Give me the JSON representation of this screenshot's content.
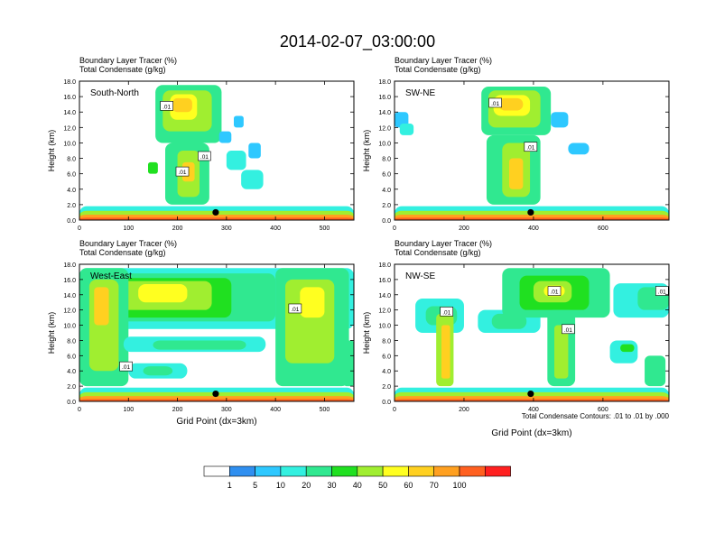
{
  "title": "2014-02-07_03:00:00",
  "colors": {
    "scale": [
      "#ffffff",
      "#2f8ff0",
      "#2ec8ff",
      "#33f0e0",
      "#30e890",
      "#20e020",
      "#a0ee30",
      "#ffff20",
      "#ffd020",
      "#ffa020",
      "#ff6020",
      "#ff2020"
    ],
    "contour": "#000000",
    "frame": "#000000"
  },
  "colorbar_labels": [
    "1",
    "5",
    "10",
    "20",
    "30",
    "40",
    "50",
    "60",
    "70",
    "100"
  ],
  "footnote": "Total Condensate Contours: .01 to .01 by .000",
  "chart_data": [
    {
      "type": "heatmap",
      "title": "South-North",
      "header_line1": "Boundary Layer Tracer   (%)",
      "header_line2": "Total Condensate   (g/kg)",
      "ylabel": "Height (km)",
      "xlabel": "",
      "xlim": [
        0,
        560
      ],
      "ylim": [
        0,
        18
      ],
      "xticks": [
        "0",
        "100",
        "200",
        "300",
        "400",
        "500"
      ],
      "xtick_values": [
        0,
        100,
        200,
        300,
        400,
        500
      ],
      "yticks": [
        "0.0",
        "2.0",
        "4.0",
        "6.0",
        "8.0",
        "10.0",
        "12.0",
        "14.0",
        "16.0",
        "18.0"
      ],
      "contour_labels": [
        {
          "text": ".01",
          "x": 178,
          "y": 14.8
        },
        {
          "text": ".01",
          "x": 210,
          "y": 6.3
        },
        {
          "text": ".01",
          "x": 255,
          "y": 8.3
        }
      ],
      "marker": {
        "x": 278,
        "y": 1.0
      },
      "cells": [
        {
          "x0": 0,
          "x1": 560,
          "y0": 0,
          "y1": 1.8,
          "v": 10
        },
        {
          "x0": 0,
          "x1": 560,
          "y0": 0,
          "y1": 1.2,
          "v": 40
        },
        {
          "x0": 0,
          "x1": 560,
          "y0": 0,
          "y1": 0.7,
          "v": 70
        },
        {
          "x0": 0,
          "x1": 560,
          "y0": 0,
          "y1": 0.3,
          "v": 100
        },
        {
          "x0": 155,
          "x1": 290,
          "y0": 10,
          "y1": 17.5,
          "v": 20
        },
        {
          "x0": 170,
          "x1": 270,
          "y0": 11.5,
          "y1": 16.8,
          "v": 40
        },
        {
          "x0": 185,
          "x1": 240,
          "y0": 13,
          "y1": 16.3,
          "v": 50
        },
        {
          "x0": 190,
          "x1": 230,
          "y0": 14,
          "y1": 15.8,
          "v": 60
        },
        {
          "x0": 175,
          "x1": 265,
          "y0": 2,
          "y1": 10,
          "v": 20
        },
        {
          "x0": 200,
          "x1": 245,
          "y0": 3,
          "y1": 9,
          "v": 40
        },
        {
          "x0": 210,
          "x1": 235,
          "y0": 5,
          "y1": 7.5,
          "v": 60
        },
        {
          "x0": 140,
          "x1": 160,
          "y0": 6,
          "y1": 7.5,
          "v": 30
        },
        {
          "x0": 285,
          "x1": 310,
          "y0": 10,
          "y1": 11.5,
          "v": 5
        },
        {
          "x0": 300,
          "x1": 340,
          "y0": 6.5,
          "y1": 9,
          "v": 10
        },
        {
          "x0": 330,
          "x1": 375,
          "y0": 4,
          "y1": 6.5,
          "v": 10
        },
        {
          "x0": 345,
          "x1": 370,
          "y0": 8,
          "y1": 10,
          "v": 5
        },
        {
          "x0": 315,
          "x1": 335,
          "y0": 12,
          "y1": 13.5,
          "v": 5
        }
      ]
    },
    {
      "type": "heatmap",
      "title": "SW-NE",
      "header_line1": "Boundary Layer Tracer   (%)",
      "header_line2": "Total Condensate   (g/kg)",
      "ylabel": "Height (km)",
      "xlabel": "",
      "xlim": [
        0,
        790
      ],
      "ylim": [
        0,
        18
      ],
      "xticks": [
        "0",
        "200",
        "400",
        "600"
      ],
      "xtick_values": [
        0,
        200,
        400,
        600
      ],
      "yticks": [
        "0.0",
        "2.0",
        "4.0",
        "6.0",
        "8.0",
        "10.0",
        "12.0",
        "14.0",
        "16.0",
        "18.0"
      ],
      "contour_labels": [
        {
          "text": ".01",
          "x": 290,
          "y": 15.2
        },
        {
          "text": ".01",
          "x": 392,
          "y": 9.5
        }
      ],
      "marker": {
        "x": 392,
        "y": 1.0
      },
      "cells": [
        {
          "x0": 0,
          "x1": 790,
          "y0": 0,
          "y1": 1.8,
          "v": 10
        },
        {
          "x0": 0,
          "x1": 790,
          "y0": 0,
          "y1": 1.2,
          "v": 40
        },
        {
          "x0": 0,
          "x1": 790,
          "y0": 0,
          "y1": 0.7,
          "v": 70
        },
        {
          "x0": 0,
          "x1": 790,
          "y0": 0,
          "y1": 0.3,
          "v": 100
        },
        {
          "x0": 250,
          "x1": 450,
          "y0": 11,
          "y1": 17.3,
          "v": 20
        },
        {
          "x0": 270,
          "x1": 420,
          "y0": 12,
          "y1": 16.8,
          "v": 40
        },
        {
          "x0": 285,
          "x1": 390,
          "y0": 13.5,
          "y1": 16.2,
          "v": 50
        },
        {
          "x0": 300,
          "x1": 370,
          "y0": 14.2,
          "y1": 15.8,
          "v": 60
        },
        {
          "x0": 265,
          "x1": 420,
          "y0": 2,
          "y1": 11,
          "v": 20
        },
        {
          "x0": 310,
          "x1": 390,
          "y0": 3,
          "y1": 10,
          "v": 40
        },
        {
          "x0": 330,
          "x1": 370,
          "y0": 4,
          "y1": 8,
          "v": 60
        },
        {
          "x0": 0,
          "x1": 40,
          "y0": 12,
          "y1": 14,
          "v": 5
        },
        {
          "x0": 15,
          "x1": 55,
          "y0": 11,
          "y1": 12.5,
          "v": 10
        },
        {
          "x0": 450,
          "x1": 500,
          "y0": 12,
          "y1": 14,
          "v": 5
        },
        {
          "x0": 500,
          "x1": 560,
          "y0": 8.5,
          "y1": 10,
          "v": 5
        }
      ]
    },
    {
      "type": "heatmap",
      "title": "West-East",
      "header_line1": "Boundary Layer Tracer   (%)",
      "header_line2": "Total Condensate   (g/kg)",
      "ylabel": "Height (km)",
      "xlabel": "Grid Point (dx=3km)",
      "xlim": [
        0,
        560
      ],
      "ylim": [
        0,
        18
      ],
      "xticks": [
        "0",
        "100",
        "200",
        "300",
        "400",
        "500"
      ],
      "xtick_values": [
        0,
        100,
        200,
        300,
        400,
        500
      ],
      "yticks": [
        "0.0",
        "2.0",
        "4.0",
        "6.0",
        "8.0",
        "10.0",
        "12.0",
        "14.0",
        "16.0",
        "18.0"
      ],
      "contour_labels": [
        {
          "text": ".01",
          "x": 95,
          "y": 4.6
        },
        {
          "text": ".01",
          "x": 440,
          "y": 12.2
        }
      ],
      "marker": {
        "x": 278,
        "y": 1.0
      },
      "cells": [
        {
          "x0": 0,
          "x1": 560,
          "y0": 0,
          "y1": 1.8,
          "v": 10
        },
        {
          "x0": 0,
          "x1": 560,
          "y0": 0,
          "y1": 1.2,
          "v": 40
        },
        {
          "x0": 0,
          "x1": 560,
          "y0": 0,
          "y1": 0.7,
          "v": 70
        },
        {
          "x0": 0,
          "x1": 560,
          "y0": 0,
          "y1": 0.3,
          "v": 100
        },
        {
          "x0": 0,
          "x1": 560,
          "y0": 9.5,
          "y1": 17.5,
          "v": 10
        },
        {
          "x0": 0,
          "x1": 400,
          "y0": 10.5,
          "y1": 16.8,
          "v": 20
        },
        {
          "x0": 30,
          "x1": 310,
          "y0": 11,
          "y1": 16.2,
          "v": 30
        },
        {
          "x0": 70,
          "x1": 270,
          "y0": 12,
          "y1": 15.8,
          "v": 40
        },
        {
          "x0": 120,
          "x1": 220,
          "y0": 13,
          "y1": 15.4,
          "v": 50
        },
        {
          "x0": 0,
          "x1": 100,
          "y0": 2,
          "y1": 17.5,
          "v": 20
        },
        {
          "x0": 20,
          "x1": 80,
          "y0": 4,
          "y1": 16,
          "v": 40
        },
        {
          "x0": 30,
          "x1": 60,
          "y0": 10,
          "y1": 15,
          "v": 60
        },
        {
          "x0": 400,
          "x1": 550,
          "y0": 2,
          "y1": 17.5,
          "v": 20
        },
        {
          "x0": 420,
          "x1": 520,
          "y0": 5,
          "y1": 16,
          "v": 40
        },
        {
          "x0": 450,
          "x1": 500,
          "y0": 11,
          "y1": 15,
          "v": 50
        },
        {
          "x0": 90,
          "x1": 380,
          "y0": 6.5,
          "y1": 8.5,
          "v": 10
        },
        {
          "x0": 150,
          "x1": 340,
          "y0": 6.8,
          "y1": 8.0,
          "v": 20
        },
        {
          "x0": 100,
          "x1": 220,
          "y0": 3,
          "y1": 5,
          "v": 10
        },
        {
          "x0": 130,
          "x1": 190,
          "y0": 3.4,
          "y1": 4.6,
          "v": 20
        },
        {
          "x0": 540,
          "x1": 560,
          "y0": 2,
          "y1": 8,
          "v": 20
        }
      ]
    },
    {
      "type": "heatmap",
      "title": "NW-SE",
      "header_line1": "Boundary Layer Tracer   (%)",
      "header_line2": "Total Condensate   (g/kg)",
      "ylabel": "Height (km)",
      "xlabel": "Grid Point (dx=3km)",
      "xlim": [
        0,
        790
      ],
      "ylim": [
        0,
        18
      ],
      "xticks": [
        "0",
        "200",
        "400",
        "600"
      ],
      "xtick_values": [
        0,
        200,
        400,
        600
      ],
      "yticks": [
        "0.0",
        "2.0",
        "4.0",
        "6.0",
        "8.0",
        "10.0",
        "12.0",
        "14.0",
        "16.0",
        "18.0"
      ],
      "contour_labels": [
        {
          "text": ".01",
          "x": 150,
          "y": 11.8
        },
        {
          "text": ".01",
          "x": 460,
          "y": 14.5
        },
        {
          "text": ".01",
          "x": 500,
          "y": 9.5
        },
        {
          "text": ".01",
          "x": 770,
          "y": 14.5
        }
      ],
      "marker": {
        "x": 392,
        "y": 1.0
      },
      "cells": [
        {
          "x0": 0,
          "x1": 790,
          "y0": 0,
          "y1": 1.8,
          "v": 10
        },
        {
          "x0": 0,
          "x1": 790,
          "y0": 0,
          "y1": 1.2,
          "v": 40
        },
        {
          "x0": 0,
          "x1": 790,
          "y0": 0,
          "y1": 0.7,
          "v": 70
        },
        {
          "x0": 0,
          "x1": 790,
          "y0": 0,
          "y1": 0.3,
          "v": 100
        },
        {
          "x0": 60,
          "x1": 200,
          "y0": 9,
          "y1": 13.5,
          "v": 10
        },
        {
          "x0": 90,
          "x1": 180,
          "y0": 10,
          "y1": 12.5,
          "v": 20
        },
        {
          "x0": 120,
          "x1": 170,
          "y0": 2,
          "y1": 11.5,
          "v": 40
        },
        {
          "x0": 135,
          "x1": 160,
          "y0": 3,
          "y1": 10,
          "v": 60
        },
        {
          "x0": 240,
          "x1": 420,
          "y0": 9,
          "y1": 12,
          "v": 10
        },
        {
          "x0": 280,
          "x1": 380,
          "y0": 9.5,
          "y1": 11.5,
          "v": 20
        },
        {
          "x0": 310,
          "x1": 620,
          "y0": 11,
          "y1": 17.5,
          "v": 20
        },
        {
          "x0": 360,
          "x1": 560,
          "y0": 12,
          "y1": 16.5,
          "v": 30
        },
        {
          "x0": 400,
          "x1": 510,
          "y0": 13,
          "y1": 15.8,
          "v": 40
        },
        {
          "x0": 430,
          "x1": 490,
          "y0": 13.8,
          "y1": 15.2,
          "v": 50
        },
        {
          "x0": 440,
          "x1": 520,
          "y0": 2,
          "y1": 12,
          "v": 20
        },
        {
          "x0": 460,
          "x1": 500,
          "y0": 3,
          "y1": 10,
          "v": 40
        },
        {
          "x0": 630,
          "x1": 790,
          "y0": 11,
          "y1": 15.5,
          "v": 10
        },
        {
          "x0": 700,
          "x1": 790,
          "y0": 12,
          "y1": 15,
          "v": 20
        },
        {
          "x0": 620,
          "x1": 700,
          "y0": 5,
          "y1": 8,
          "v": 10
        },
        {
          "x0": 650,
          "x1": 690,
          "y0": 6.5,
          "y1": 7.5,
          "v": 30
        },
        {
          "x0": 720,
          "x1": 780,
          "y0": 2,
          "y1": 6,
          "v": 20
        }
      ]
    }
  ]
}
